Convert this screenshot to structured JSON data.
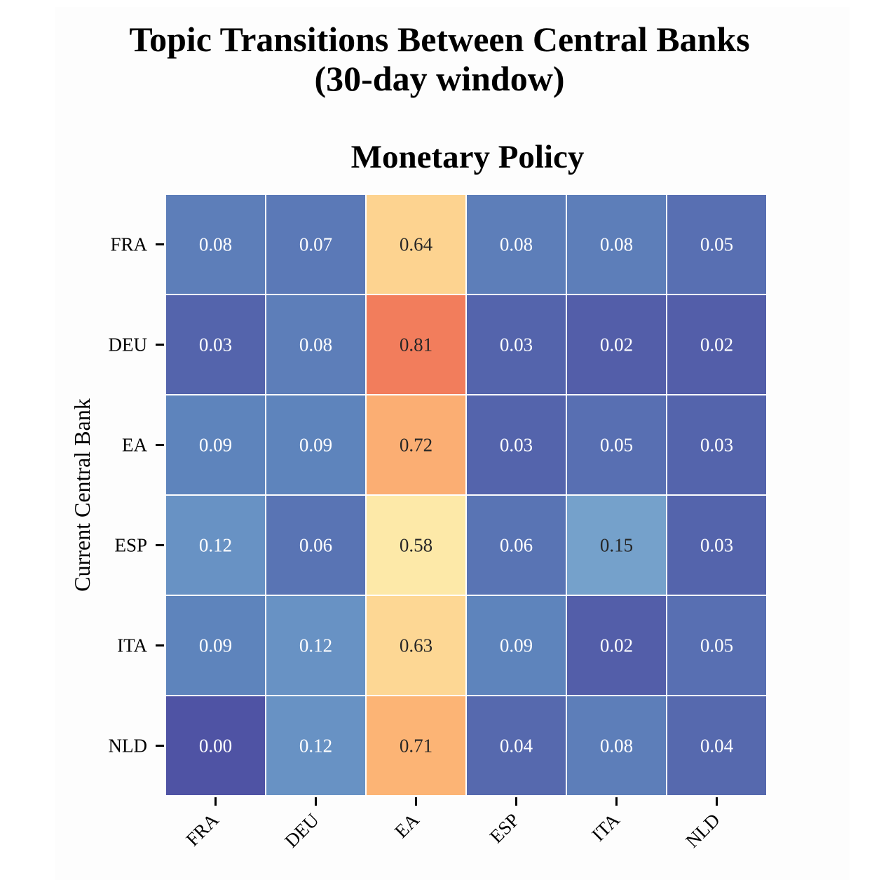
{
  "title_line1": "Topic Transitions Between Central Banks",
  "title_line2": "(30-day window)",
  "chart_data": {
    "type": "heatmap",
    "title": "Monetary Policy",
    "ylabel": "Current Central Bank",
    "xlabel": "",
    "rows": [
      "FRA",
      "DEU",
      "EA",
      "ESP",
      "ITA",
      "NLD"
    ],
    "columns": [
      "FRA",
      "DEU",
      "EA",
      "ESP",
      "ITA",
      "NLD"
    ],
    "values": [
      [
        0.08,
        0.07,
        0.64,
        0.08,
        0.08,
        0.05
      ],
      [
        0.03,
        0.08,
        0.81,
        0.03,
        0.02,
        0.02
      ],
      [
        0.09,
        0.09,
        0.72,
        0.03,
        0.05,
        0.03
      ],
      [
        0.12,
        0.06,
        0.58,
        0.06,
        0.15,
        0.03
      ],
      [
        0.09,
        0.12,
        0.63,
        0.09,
        0.02,
        0.05
      ],
      [
        0.0,
        0.12,
        0.71,
        0.04,
        0.08,
        0.04
      ]
    ],
    "colormap": "RdYlBu_r",
    "colorbar": false,
    "annotations": true
  }
}
